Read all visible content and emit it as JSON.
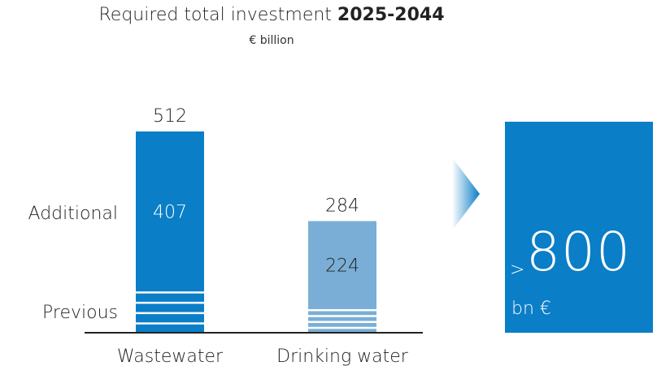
{
  "title_prefix": "Required total investment ",
  "title_period": "2025-2044",
  "subtitle": "€ billion",
  "colors": {
    "wastewater": "#0a7ec7",
    "drinking_water": "#7aaed6",
    "total_box": "#0a7ec7",
    "axis": "#222222"
  },
  "chart_data": {
    "type": "bar",
    "title": "Required total investment 2025-2044",
    "subtitle": "€ billion",
    "categories": [
      "Wastewater",
      "Drinking water"
    ],
    "series": [
      {
        "name": "Previous",
        "values": [
          105,
          60
        ]
      },
      {
        "name": "Additional",
        "values": [
          407,
          224
        ]
      }
    ],
    "totals": [
      512,
      284
    ],
    "ylim": [
      0,
      512
    ],
    "row_labels": [
      "Additional",
      "Previous"
    ],
    "grid": false
  },
  "total_box": {
    "prefix": ">",
    "value": "800",
    "unit": "bn €"
  }
}
